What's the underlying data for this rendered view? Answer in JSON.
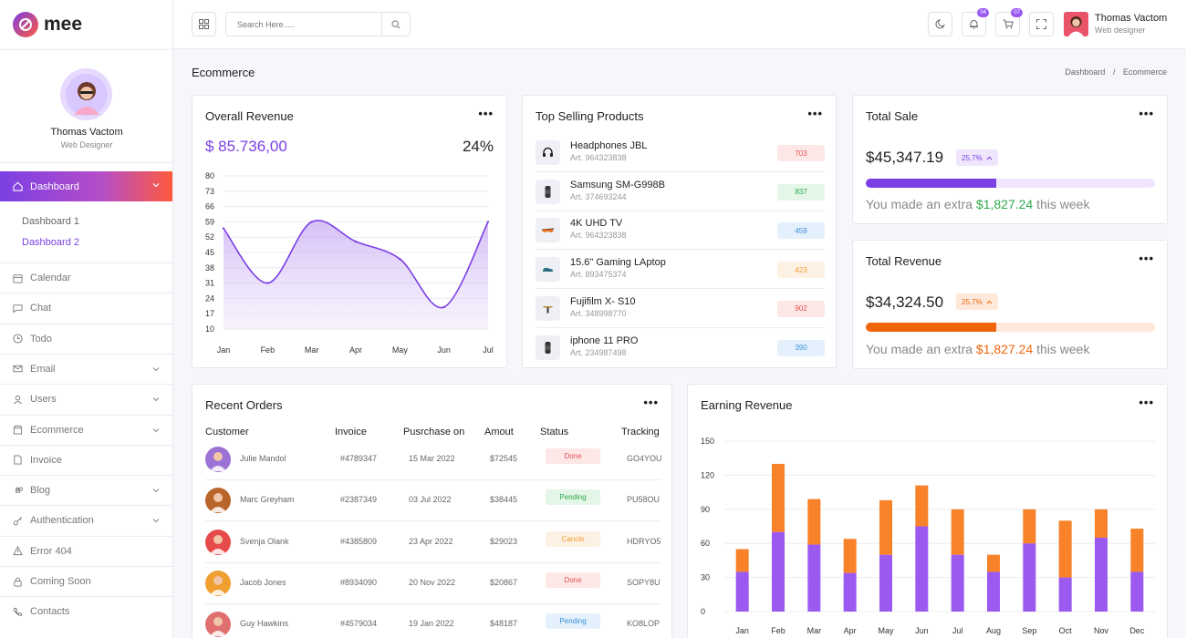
{
  "app": {
    "name": "mee"
  },
  "sidebar": {
    "profile": {
      "name": "Thomas Vactom",
      "role": "Web Designer"
    },
    "active": {
      "label": "Dashboard"
    },
    "subitems": [
      {
        "label": "Dashboard 1"
      },
      {
        "label": "Dashboard 2"
      }
    ],
    "items": [
      {
        "label": "Calendar",
        "icon": "calendar-icon",
        "chevron": false
      },
      {
        "label": "Chat",
        "icon": "chat-icon",
        "chevron": false
      },
      {
        "label": "Todo",
        "icon": "clock-icon",
        "chevron": false
      },
      {
        "label": "Email",
        "icon": "mail-icon",
        "chevron": true
      },
      {
        "label": "Users",
        "icon": "user-icon",
        "chevron": true
      },
      {
        "label": "Ecommerce",
        "icon": "shop-icon",
        "chevron": true
      },
      {
        "label": "Invoice",
        "icon": "document-icon",
        "chevron": false
      },
      {
        "label": "Blog",
        "icon": "command-icon",
        "chevron": true
      },
      {
        "label": "Authentication",
        "icon": "key-icon",
        "chevron": true
      },
      {
        "label": "Error 404",
        "icon": "warning-icon",
        "chevron": false
      },
      {
        "label": "Coming Soon",
        "icon": "lock-icon",
        "chevron": false
      },
      {
        "label": "Contacts",
        "icon": "phone-icon",
        "chevron": false
      }
    ]
  },
  "topbar": {
    "search_placeholder": "Search Here.....",
    "notif_badge": "04",
    "cart_badge": "07",
    "user": {
      "name": "Thomas Vactom",
      "role": "Web designer"
    }
  },
  "page": {
    "title": "Ecommerce",
    "breadcrumb": {
      "home": "Dashboard",
      "sep": "/",
      "current": "Ecommerce"
    }
  },
  "overall_revenue": {
    "title": "Overall Revenue",
    "amount": "$ 85.736,00",
    "percent": "24%"
  },
  "top_products": {
    "title": "Top Selling Products",
    "items": [
      {
        "name": "Headphones JBL",
        "art": "Art. 964323838",
        "qty": "703",
        "tone": "red",
        "icon": "headphones-icon"
      },
      {
        "name": "Samsung SM-G998B",
        "art": "Art. 374693244",
        "qty": "837",
        "tone": "green",
        "icon": "smartwatch-icon"
      },
      {
        "name": "4K UHD TV",
        "art": "Art. 964323838",
        "qty": "459",
        "tone": "blue",
        "icon": "glasses-icon"
      },
      {
        "name": "15.6\" Gaming LAptop",
        "art": "Art. 893475374",
        "qty": "423",
        "tone": "orange",
        "icon": "shoe-icon"
      },
      {
        "name": "Fujifilm X- S10",
        "art": "Art. 348998770",
        "qty": "902",
        "tone": "red",
        "icon": "table-icon"
      },
      {
        "name": "iphone 11 PRO",
        "art": "Art. 234987498",
        "qty": "390",
        "tone": "blue",
        "icon": "smartwatch-icon"
      }
    ]
  },
  "total_sale": {
    "title": "Total Sale",
    "value": "$45,347.19",
    "percent": "25.7%",
    "progress": 0.45,
    "extra_prefix": "You made an extra",
    "extra_amount": "$1,827.24",
    "extra_suffix": "this week",
    "accent": "#7b3fe4",
    "amount_color": "#2ea84a"
  },
  "total_revenue": {
    "title": "Total Revenue",
    "value": "$34,324.50",
    "percent": "25.7%",
    "progress": 0.45,
    "extra_prefix": "You made an extra",
    "extra_amount": "$1,827.24",
    "extra_suffix": "this week",
    "accent": "#f1650a",
    "amount_color": "#f1650a"
  },
  "recent_orders": {
    "title": "Recent Orders",
    "columns": [
      "Customer",
      "Invoice",
      "Pusrchase on",
      "Amout",
      "Status",
      "Tracking"
    ],
    "rows": [
      {
        "customer": "Julie Mandol",
        "invoice": "#4789347",
        "date": "15 Mar 2022",
        "amount": "$72545",
        "status": "Done",
        "tone": "red",
        "tracking": "GO4YOU",
        "avatar": "#9c72d6"
      },
      {
        "customer": "Marc Greyham",
        "invoice": "#2387349",
        "date": "03 Jul 2022",
        "amount": "$38445",
        "status": "Pending",
        "tone": "green",
        "tracking": "PU58OU",
        "avatar": "#b8642a"
      },
      {
        "customer": "Svenja Olank",
        "invoice": "#4385809",
        "date": "23 Apr 2022",
        "amount": "$29023",
        "status": "Cancle",
        "tone": "orange",
        "tracking": "HDRYO5",
        "avatar": "#e64a4a"
      },
      {
        "customer": "Jacob Jones",
        "invoice": "#8934090",
        "date": "20 Nov 2022",
        "amount": "$20867",
        "status": "Done",
        "tone": "red",
        "tracking": "SOPY8U",
        "avatar": "#f0a030"
      },
      {
        "customer": "Guy Hawkins",
        "invoice": "#4579034",
        "date": "19 Jan 2022",
        "amount": "$48187",
        "status": "Pending",
        "tone": "blue",
        "tracking": "KO8LOP",
        "avatar": "#e07070"
      }
    ]
  },
  "earning_revenue_title": "Earning Revenue",
  "colors": {
    "purple": "#7b3fe4",
    "orange": "#f1650a"
  },
  "chart_data": [
    {
      "type": "area",
      "title": "Overall Revenue",
      "categories": [
        "Jan",
        "Feb",
        "Mar",
        "Apr",
        "May",
        "Jun",
        "Jul"
      ],
      "values": [
        56,
        31,
        59,
        50,
        42,
        20,
        59
      ],
      "yticks": [
        80,
        73,
        66,
        59,
        52,
        45,
        38,
        31,
        24,
        17,
        10
      ],
      "ylim": [
        10,
        80
      ],
      "grid": true
    },
    {
      "type": "bar",
      "title": "Earning Revenue",
      "stacked": true,
      "categories": [
        "Jan",
        "Feb",
        "Mar",
        "Apr",
        "May",
        "Jun",
        "Jul",
        "Aug",
        "Sep",
        "Oct",
        "Nov",
        "Dec"
      ],
      "series": [
        {
          "values": [
            35,
            70,
            59,
            34,
            50,
            75,
            50,
            35,
            60,
            30,
            65,
            35
          ],
          "color": "#9b59f0"
        },
        {
          "values": [
            20,
            60,
            40,
            30,
            48,
            36,
            40,
            15,
            30,
            50,
            25,
            38
          ],
          "color": "#f7822a"
        }
      ],
      "yticks": [
        150,
        120,
        90,
        60,
        30,
        0
      ],
      "ylim": [
        0,
        150
      ],
      "grid": true
    }
  ]
}
